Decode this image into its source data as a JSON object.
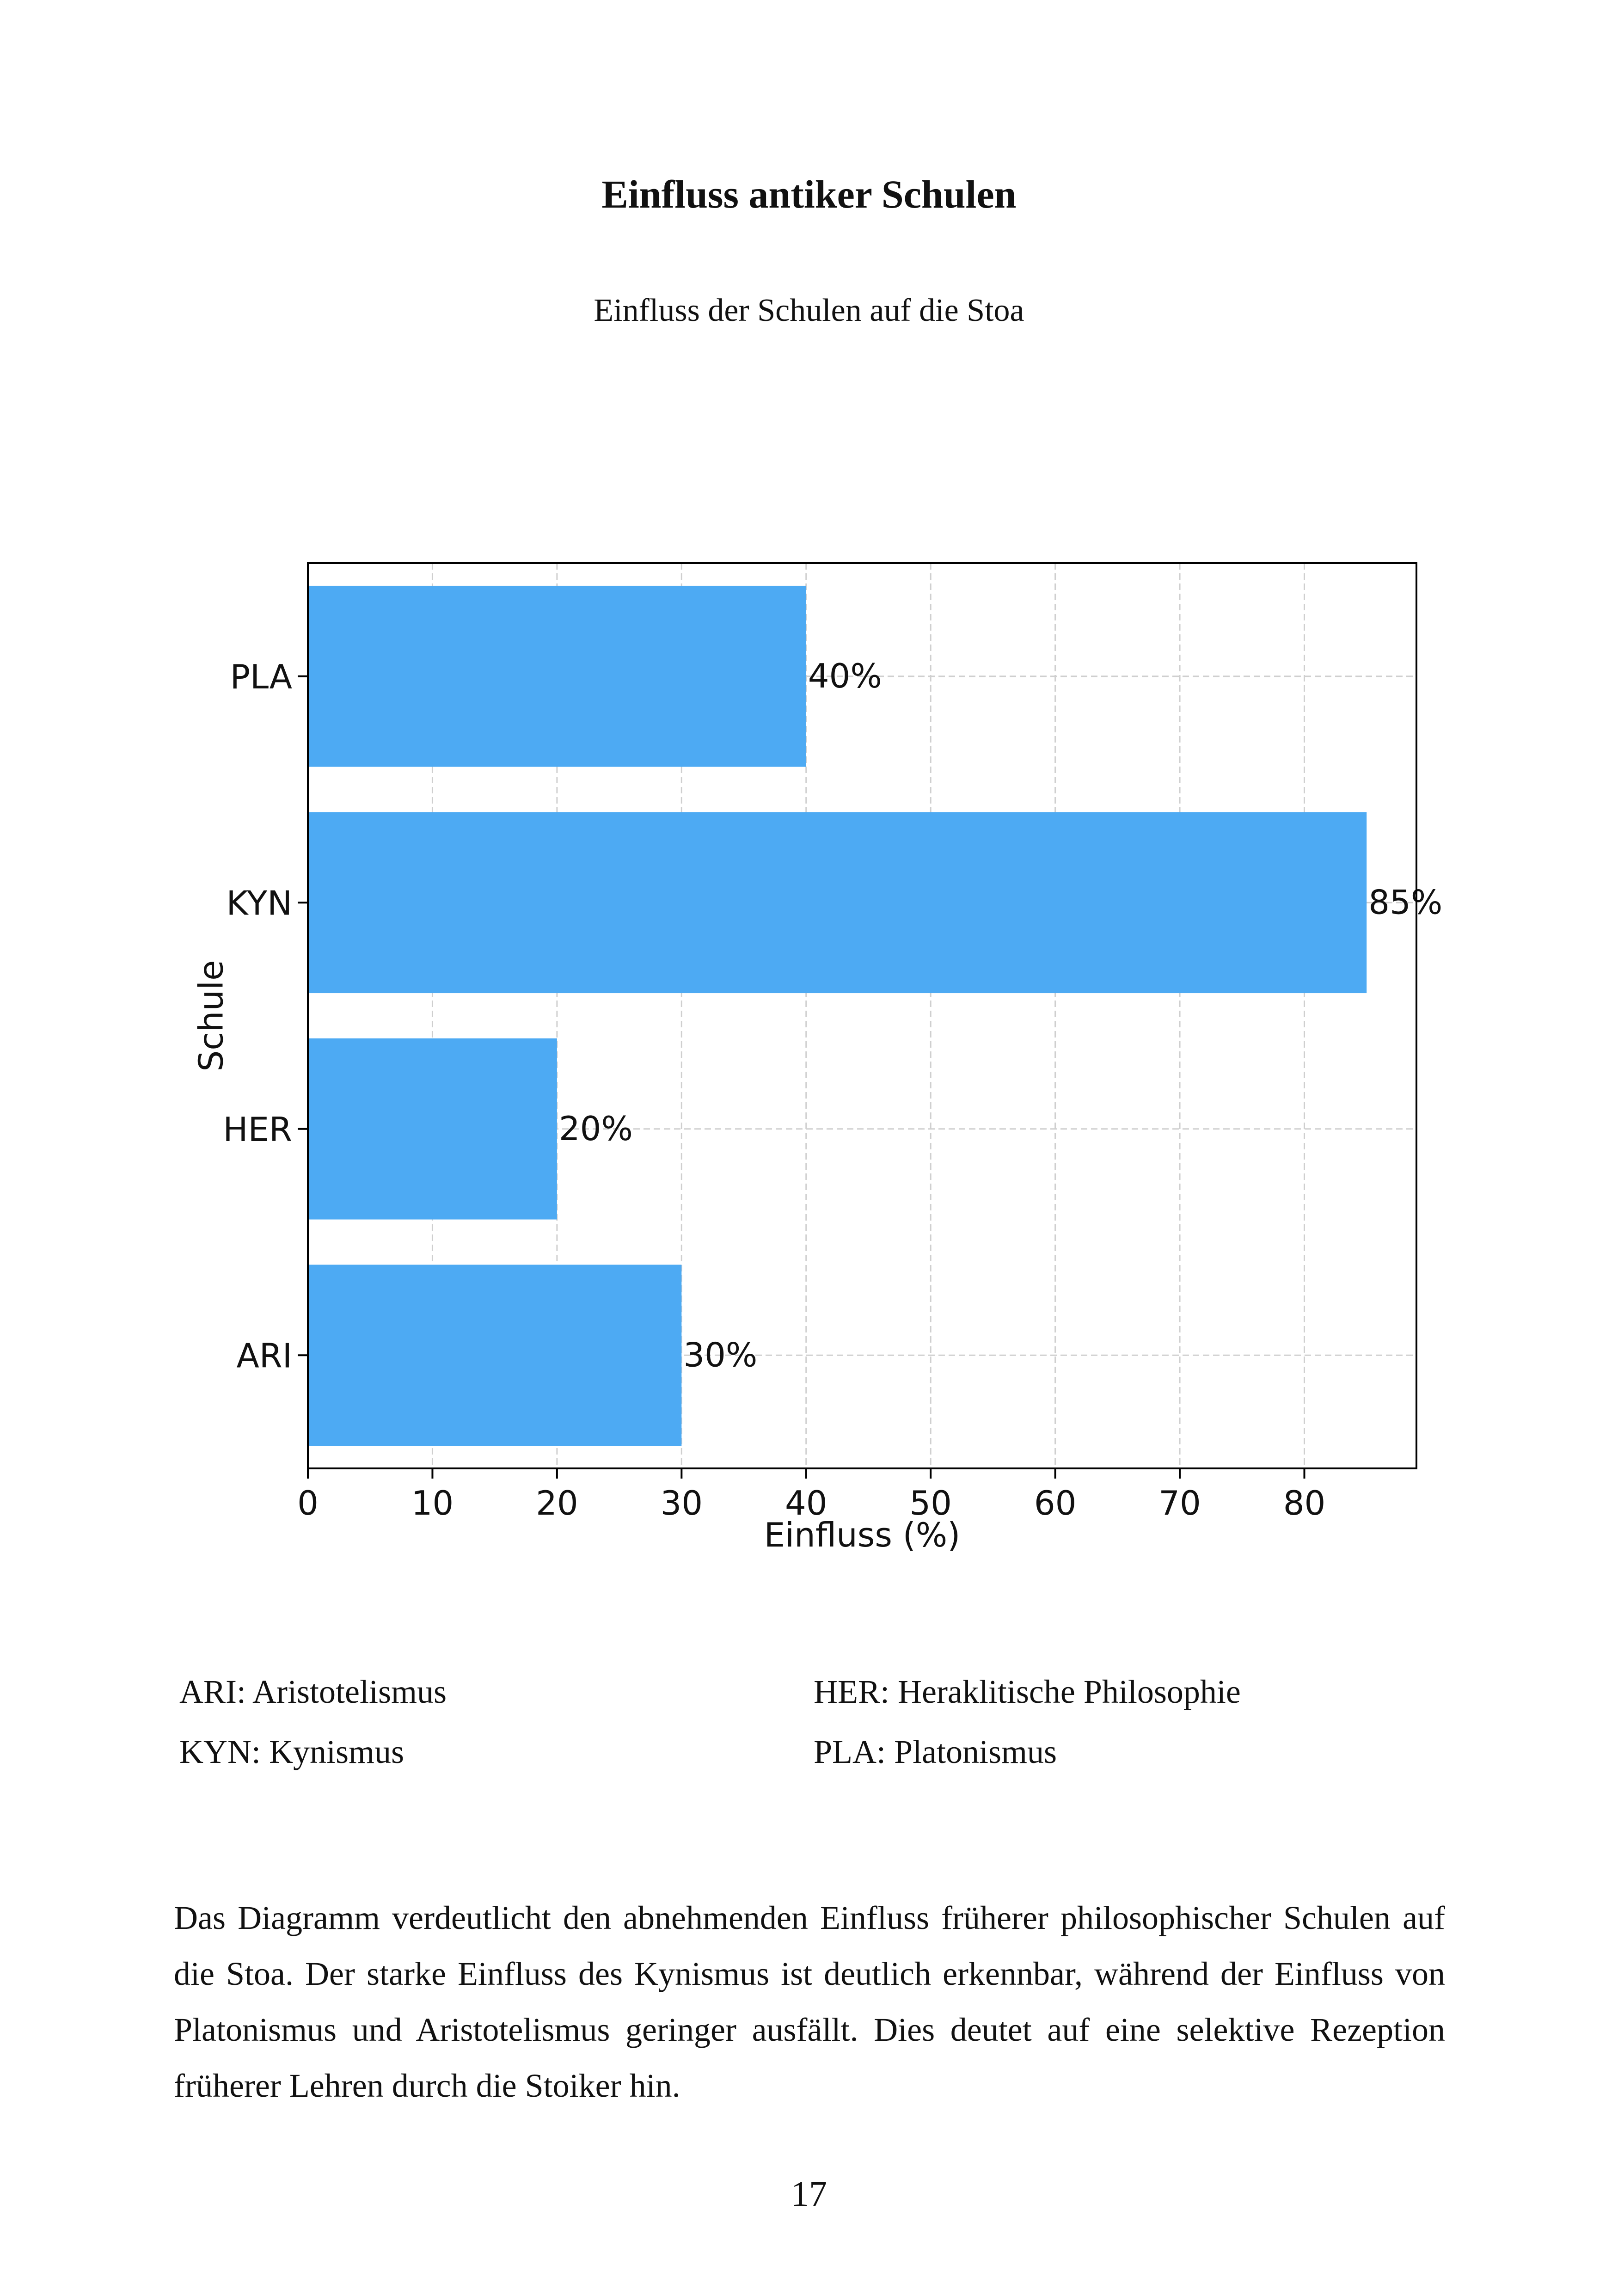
{
  "page": {
    "heading": "Einfluss antiker Schulen",
    "page_number": "17"
  },
  "legend_items": [
    "ARI: Aristotelismus",
    "HER: Heraklitische Philosophie",
    "KYN: Kynismus",
    "PLA: Platonismus"
  ],
  "paragraph": "Das Diagramm verdeutlicht den abnehmenden Einfluss früherer philosophischer Schulen auf die Stoa. Der starke Einfluss des Kynismus ist deutlich erkennbar, während der Einfluss von Platonismus und Aristotelismus geringer ausfällt. Dies deutet auf eine selektive Rezeption früherer Lehren durch die Stoiker hin.",
  "chart_data": {
    "type": "bar",
    "orientation": "horizontal",
    "title": "Einfluss der Schulen auf die Stoa",
    "xlabel": "Einfluss (%)",
    "ylabel": "Schule",
    "categories": [
      "ARI",
      "HER",
      "KYN",
      "PLA"
    ],
    "values": [
      30,
      20,
      85,
      40
    ],
    "data_labels": [
      "30%",
      "20%",
      "85%",
      "40%"
    ],
    "xlim": [
      0,
      89
    ],
    "xticks": [
      0,
      10,
      20,
      30,
      40,
      50,
      60,
      70,
      80
    ],
    "grid": true,
    "bar_color": "#4daaf3"
  }
}
